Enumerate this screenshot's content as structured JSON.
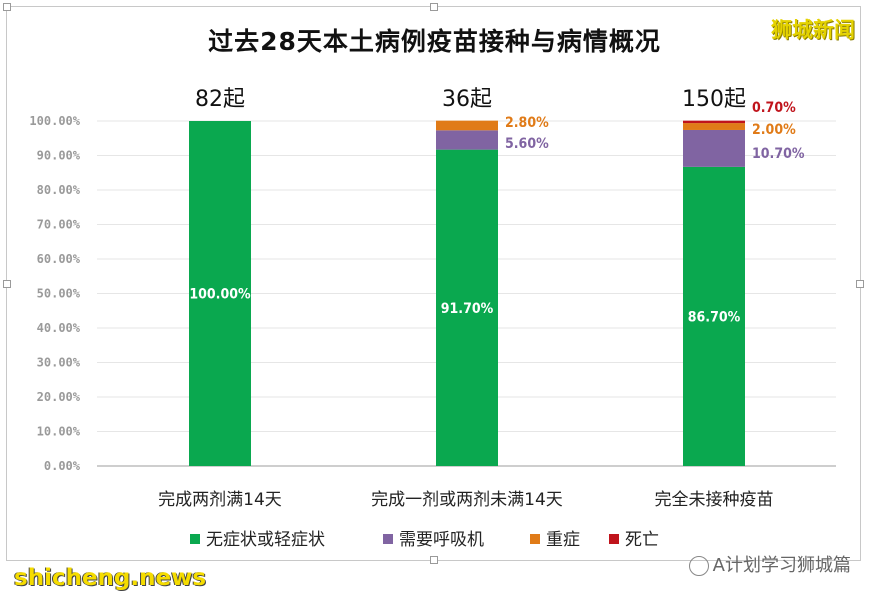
{
  "title": "过去28天本土病例疫苗接种与病情概况",
  "brand": "狮城新闻",
  "watermarks": {
    "left": "shicheng.news",
    "right": "A计划学习狮城篇"
  },
  "chart_data": {
    "type": "bar",
    "stacked": true,
    "title": "过去28天本土病例疫苗接种与病情概况",
    "categories": [
      "完成两剂满14天",
      "完成一剂或两剂未满14天",
      "完全未接种疫苗"
    ],
    "totals": [
      "82起",
      "36起",
      "150起"
    ],
    "ylim": [
      0,
      100
    ],
    "yticks": [
      "0.00%",
      "10.00%",
      "20.00%",
      "30.00%",
      "40.00%",
      "50.00%",
      "60.00%",
      "70.00%",
      "80.00%",
      "90.00%",
      "100.00%"
    ],
    "legend_position": "bottom",
    "series": [
      {
        "name": "无症状或轻症状",
        "color": "#0aa84f",
        "values": [
          100.0,
          91.7,
          86.7
        ],
        "labels": [
          "100.00%",
          "91.70%",
          "86.70%"
        ]
      },
      {
        "name": "需要呼吸机",
        "color": "#8064a2",
        "values": [
          0,
          5.6,
          10.7
        ],
        "labels": [
          "",
          "5.60%",
          "10.70%"
        ]
      },
      {
        "name": "重症",
        "color": "#e07b18",
        "values": [
          0,
          2.8,
          2.0
        ],
        "labels": [
          "",
          "2.80%",
          "2.00%"
        ]
      },
      {
        "name": "死亡",
        "color": "#c0141c",
        "values": [
          0,
          0,
          0.7
        ],
        "labels": [
          "",
          "",
          "0.70%"
        ]
      }
    ]
  }
}
